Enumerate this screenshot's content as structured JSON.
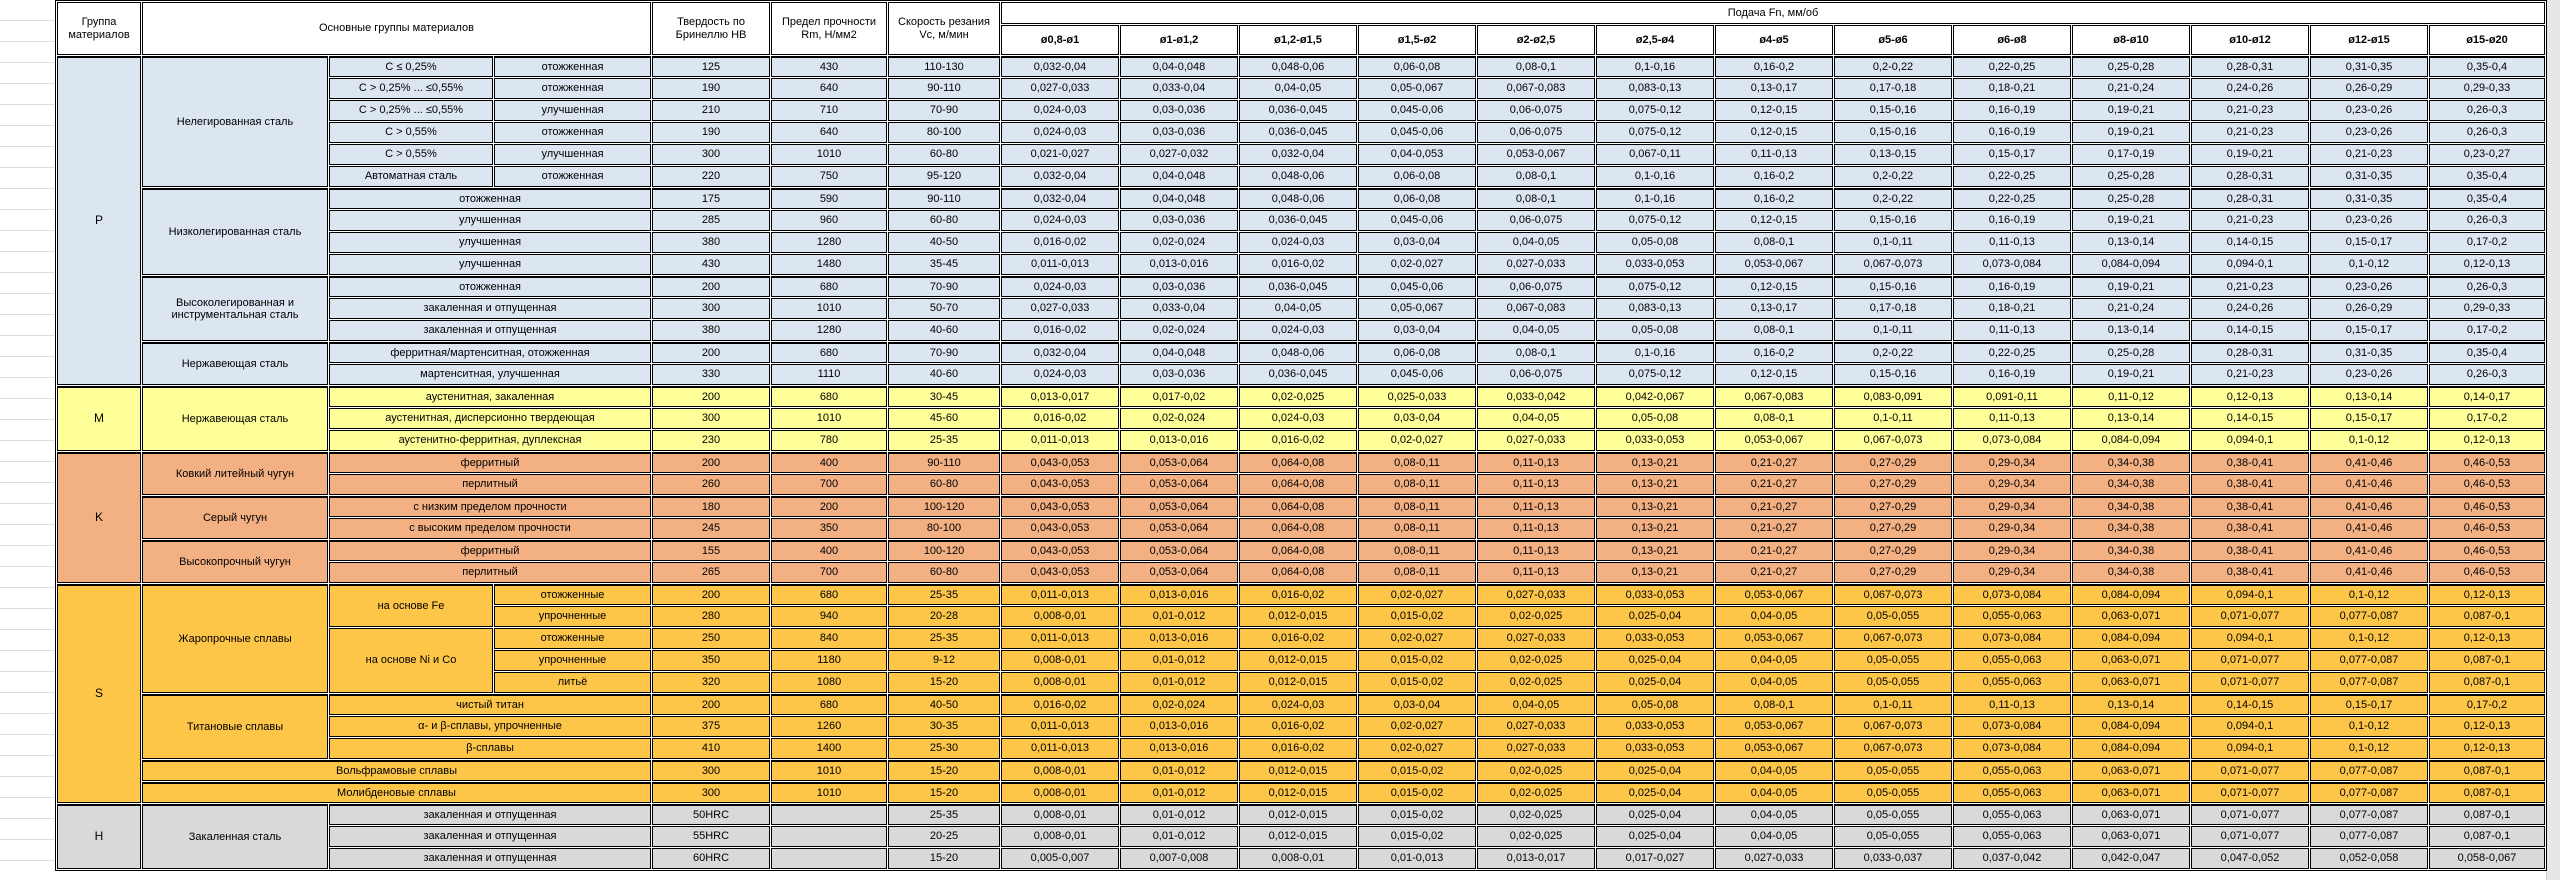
{
  "header": {
    "col_group": "Группа материалов",
    "col_main": "Основные группы материалов",
    "col_hardness": "Твердость по Бринеллю HB",
    "col_strength": "Предел прочности Rm, Н/мм2",
    "col_speed": "Скорость резания Vc, м/мин",
    "col_feed": "Подача Fn, мм/об",
    "diameters": [
      "ø0,8-ø1",
      "ø1-ø1,2",
      "ø1,2-ø1,5",
      "ø1,5-ø2",
      "ø2-ø2,5",
      "ø2,5-ø4",
      "ø4-ø5",
      "ø5-ø6",
      "ø6-ø8",
      "ø8-ø10",
      "ø10-ø12",
      "ø12-ø15",
      "ø15-ø20"
    ]
  },
  "feed_patterns": {
    "A": [
      "0,032-0,04",
      "0,04-0,048",
      "0,048-0,06",
      "0,06-0,08",
      "0,08-0,1",
      "0,1-0,16",
      "0,16-0,2",
      "0,2-0,22",
      "0,22-0,25",
      "0,25-0,28",
      "0,28-0,31",
      "0,31-0,35",
      "0,35-0,4"
    ],
    "B": [
      "0,027-0,033",
      "0,033-0,04",
      "0,04-0,05",
      "0,05-0,067",
      "0,067-0,083",
      "0,083-0,13",
      "0,13-0,17",
      "0,17-0,18",
      "0,18-0,21",
      "0,21-0,24",
      "0,24-0,26",
      "0,26-0,29",
      "0,29-0,33"
    ],
    "C": [
      "0,024-0,03",
      "0,03-0,036",
      "0,036-0,045",
      "0,045-0,06",
      "0,06-0,075",
      "0,075-0,12",
      "0,12-0,15",
      "0,15-0,16",
      "0,16-0,19",
      "0,19-0,21",
      "0,21-0,23",
      "0,23-0,26",
      "0,26-0,3"
    ],
    "D": [
      "0,021-0,027",
      "0,027-0,032",
      "0,032-0,04",
      "0,04-0,053",
      "0,053-0,067",
      "0,067-0,11",
      "0,11-0,13",
      "0,13-0,15",
      "0,15-0,17",
      "0,17-0,19",
      "0,19-0,21",
      "0,21-0,23",
      "0,23-0,27"
    ],
    "E": [
      "0,016-0,02",
      "0,02-0,024",
      "0,024-0,03",
      "0,03-0,04",
      "0,04-0,05",
      "0,05-0,08",
      "0,08-0,1",
      "0,1-0,11",
      "0,11-0,13",
      "0,13-0,14",
      "0,14-0,15",
      "0,15-0,17",
      "0,17-0,2"
    ],
    "F": [
      "0,011-0,013",
      "0,013-0,016",
      "0,016-0,02",
      "0,02-0,027",
      "0,027-0,033",
      "0,033-0,053",
      "0,053-0,067",
      "0,067-0,073",
      "0,073-0,084",
      "0,084-0,094",
      "0,094-0,1",
      "0,1-0,12",
      "0,12-0,13"
    ],
    "G": [
      "0,013-0,017",
      "0,017-0,02",
      "0,02-0,025",
      "0,025-0,033",
      "0,033-0,042",
      "0,042-0,067",
      "0,067-0,083",
      "0,083-0,091",
      "0,091-0,11",
      "0,11-0,12",
      "0,12-0,13",
      "0,13-0,14",
      "0,14-0,17"
    ],
    "K": [
      "0,043-0,053",
      "0,053-0,064",
      "0,064-0,08",
      "0,08-0,11",
      "0,11-0,13",
      "0,13-0,21",
      "0,21-0,27",
      "0,27-0,29",
      "0,29-0,34",
      "0,34-0,38",
      "0,38-0,41",
      "0,41-0,46",
      "0,46-0,53"
    ],
    "H8": [
      "0,008-0,01",
      "0,01-0,012",
      "0,012-0,015",
      "0,015-0,02",
      "0,02-0,025",
      "0,025-0,04",
      "0,04-0,05",
      "0,05-0,055",
      "0,055-0,063",
      "0,063-0,071",
      "0,071-0,077",
      "0,077-0,087",
      "0,087-0,1"
    ],
    "I": [
      "0,005-0,007",
      "0,007-0,008",
      "0,008-0,01",
      "0,01-0,013",
      "0,013-0,017",
      "0,017-0,027",
      "0,027-0,033",
      "0,033-0,037",
      "0,037-0,042",
      "0,042-0,047",
      "0,047-0,052",
      "0,052-0,058",
      "0,058-0,067"
    ]
  },
  "groups": [
    {
      "letter": "P",
      "color": "#DCE6F1",
      "families": [
        {
          "name": "Нелегированная сталь",
          "rows": [
            {
              "sub": "C ≤ 0,25%",
              "treat": "отожженная",
              "hb": "125",
              "rm": "430",
              "vc": "110-130",
              "feeds": "A"
            },
            {
              "sub": "C > 0,25% ... ≤0,55%",
              "treat": "отожженная",
              "hb": "190",
              "rm": "640",
              "vc": "90-110",
              "feeds": "B"
            },
            {
              "sub": "C > 0,25% ... ≤0,55%",
              "treat": "улучшенная",
              "hb": "210",
              "rm": "710",
              "vc": "70-90",
              "feeds": "C"
            },
            {
              "sub": "C > 0,55%",
              "treat": "отожженная",
              "hb": "190",
              "rm": "640",
              "vc": "80-100",
              "feeds": "C"
            },
            {
              "sub": "C > 0,55%",
              "treat": "улучшенная",
              "hb": "300",
              "rm": "1010",
              "vc": "60-80",
              "feeds": "D"
            },
            {
              "sub": "Автоматная сталь",
              "treat": "отожженная",
              "hb": "220",
              "rm": "750",
              "vc": "95-120",
              "feeds": "A"
            }
          ]
        },
        {
          "name": "Низколегированная сталь",
          "rows": [
            {
              "full": "отожженная",
              "hb": "175",
              "rm": "590",
              "vc": "90-110",
              "feeds": "A"
            },
            {
              "full": "улучшенная",
              "hb": "285",
              "rm": "960",
              "vc": "60-80",
              "feeds": "C"
            },
            {
              "full": "улучшенная",
              "hb": "380",
              "rm": "1280",
              "vc": "40-50",
              "feeds": "E"
            },
            {
              "full": "улучшенная",
              "hb": "430",
              "rm": "1480",
              "vc": "35-45",
              "feeds": "F"
            }
          ]
        },
        {
          "name": "Высоколегированная и инструментальная сталь",
          "rows": [
            {
              "full": "отожженная",
              "hb": "200",
              "rm": "680",
              "vc": "70-90",
              "feeds": "C"
            },
            {
              "full": "закаленная и отпущенная",
              "hb": "300",
              "rm": "1010",
              "vc": "50-70",
              "feeds": "B"
            },
            {
              "full": "закаленная и отпущенная",
              "hb": "380",
              "rm": "1280",
              "vc": "40-60",
              "feeds": "E"
            }
          ]
        },
        {
          "name": "Нержавеющая сталь",
          "rows": [
            {
              "full": "ферритная/мартенситная, отожженная",
              "hb": "200",
              "rm": "680",
              "vc": "70-90",
              "feeds": "A"
            },
            {
              "full": "мартенситная, улучшенная",
              "hb": "330",
              "rm": "1110",
              "vc": "40-60",
              "feeds": "C"
            }
          ]
        }
      ]
    },
    {
      "letter": "M",
      "color": "#FFFF99",
      "families": [
        {
          "name": "Нержавеющая сталь",
          "rows": [
            {
              "full": "аустенитная, закаленная",
              "hb": "200",
              "rm": "680",
              "vc": "30-45",
              "feeds": "G"
            },
            {
              "full": "аустенитная, дисперсионно твердеющая",
              "hb": "300",
              "rm": "1010",
              "vc": "45-60",
              "feeds": "E"
            },
            {
              "full": "аустенитно-ферритная, дуплексная",
              "hb": "230",
              "rm": "780",
              "vc": "25-35",
              "feeds": "F"
            }
          ]
        }
      ]
    },
    {
      "letter": "K",
      "color": "#F2B083",
      "families": [
        {
          "name": "Ковкий литейный чугун",
          "rows": [
            {
              "full": "ферритный",
              "hb": "200",
              "rm": "400",
              "vc": "90-110",
              "feeds": "K"
            },
            {
              "full": "перлитный",
              "hb": "260",
              "rm": "700",
              "vc": "60-80",
              "feeds": "K"
            }
          ]
        },
        {
          "name": "Серый чугун",
          "rows": [
            {
              "full": "с низким пределом прочности",
              "hb": "180",
              "rm": "200",
              "vc": "100-120",
              "feeds": "K"
            },
            {
              "full": "с высоким пределом прочности",
              "hb": "245",
              "rm": "350",
              "vc": "80-100",
              "feeds": "K"
            }
          ]
        },
        {
          "name": "Высокопрочный чугун",
          "rows": [
            {
              "full": "ферритный",
              "hb": "155",
              "rm": "400",
              "vc": "100-120",
              "feeds": "K"
            },
            {
              "full": "перлитный",
              "hb": "265",
              "rm": "700",
              "vc": "60-80",
              "feeds": "K"
            }
          ]
        }
      ]
    },
    {
      "letter": "S",
      "color": "#FDC648",
      "families": [
        {
          "name": "Жаропрочные сплавы",
          "rows": [
            {
              "base": "на основе Fe",
              "span": 2,
              "treat": "отожженные",
              "hb": "200",
              "rm": "680",
              "vc": "25-35",
              "feeds": "F"
            },
            {
              "treat": "упрочненные",
              "hb": "280",
              "rm": "940",
              "vc": "20-28",
              "feeds": "H8"
            },
            {
              "base": "на основе Ni и Co",
              "span": 3,
              "treat": "отожженные",
              "hb": "250",
              "rm": "840",
              "vc": "25-35",
              "feeds": "F"
            },
            {
              "treat": "упрочненные",
              "hb": "350",
              "rm": "1180",
              "vc": "9-12",
              "feeds": "H8"
            },
            {
              "treat": "литьё",
              "hb": "320",
              "rm": "1080",
              "vc": "15-20",
              "feeds": "H8"
            }
          ]
        },
        {
          "name": "Титановые сплавы",
          "rows": [
            {
              "full": "чистый титан",
              "hb": "200",
              "rm": "680",
              "vc": "40-50",
              "feeds": "E"
            },
            {
              "full": "α- и β-сплавы, упрочненные",
              "hb": "375",
              "rm": "1260",
              "vc": "30-35",
              "feeds": "F"
            },
            {
              "full": "β-сплавы",
              "hb": "410",
              "rm": "1400",
              "vc": "25-30",
              "feeds": "F"
            }
          ]
        },
        {
          "name_full": "Вольфрамовые сплавы",
          "rows": [
            {
              "hb": "300",
              "rm": "1010",
              "vc": "15-20",
              "feeds": "H8"
            }
          ]
        },
        {
          "name_full": "Молибденовые сплавы",
          "rows": [
            {
              "hb": "300",
              "rm": "1010",
              "vc": "15-20",
              "feeds": "H8"
            }
          ]
        }
      ]
    },
    {
      "letter": "H",
      "color": "#D9D9D9",
      "families": [
        {
          "name": "Закаленная сталь",
          "rows": [
            {
              "full": "закаленная и отпущенная",
              "hb": "50HRC",
              "rm": "",
              "vc": "25-35",
              "feeds": "H8"
            },
            {
              "full": "закаленная и отпущенная",
              "hb": "55HRC",
              "rm": "",
              "vc": "20-25",
              "feeds": "H8"
            },
            {
              "full": "закаленная и отпущенная",
              "hb": "60HRC",
              "rm": "",
              "vc": "15-20",
              "feeds": "I"
            }
          ]
        }
      ]
    }
  ]
}
